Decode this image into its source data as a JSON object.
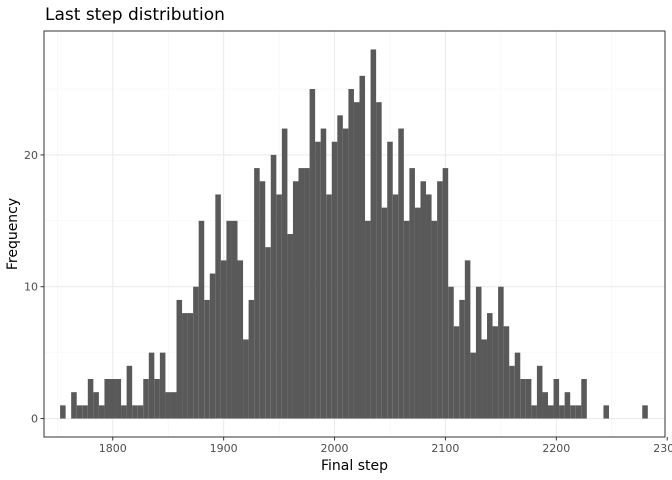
{
  "chart_data": {
    "type": "bar",
    "title": "Last step distribution",
    "xlabel": "Final step",
    "ylabel": "Frequency",
    "xlim": [
      1738,
      2298
    ],
    "ylim": [
      -1.4,
      29.4
    ],
    "x_ticks": [
      1800,
      1900,
      2000,
      2100,
      2200,
      2300
    ],
    "y_ticks": [
      0,
      10,
      20
    ],
    "x_tick_labels": [
      "1800",
      "1900",
      "2000",
      "2100",
      "2200",
      "2300"
    ],
    "y_tick_labels": [
      "0",
      "10",
      "20"
    ],
    "bin_width": 5,
    "grid": true,
    "legend": "none",
    "colors": {
      "bar": "#595959",
      "grid_major": "#ebebeb",
      "grid_minor": "#f5f5f5",
      "panel_border": "#333333"
    },
    "x": [
      1755,
      1765,
      1770,
      1775,
      1780,
      1785,
      1790,
      1795,
      1800,
      1805,
      1810,
      1815,
      1820,
      1825,
      1830,
      1835,
      1840,
      1845,
      1850,
      1855,
      1860,
      1865,
      1870,
      1875,
      1880,
      1885,
      1890,
      1895,
      1900,
      1905,
      1910,
      1915,
      1920,
      1925,
      1930,
      1935,
      1940,
      1945,
      1950,
      1955,
      1960,
      1965,
      1970,
      1975,
      1980,
      1985,
      1990,
      1995,
      2000,
      2005,
      2010,
      2015,
      2020,
      2025,
      2030,
      2035,
      2040,
      2045,
      2050,
      2055,
      2060,
      2065,
      2070,
      2075,
      2080,
      2085,
      2090,
      2095,
      2100,
      2105,
      2110,
      2115,
      2120,
      2125,
      2130,
      2135,
      2140,
      2145,
      2150,
      2155,
      2160,
      2165,
      2170,
      2175,
      2180,
      2185,
      2190,
      2195,
      2200,
      2205,
      2210,
      2215,
      2220,
      2225,
      2245,
      2280
    ],
    "values": [
      1,
      2,
      1,
      1,
      3,
      2,
      1,
      3,
      3,
      3,
      1,
      4,
      1,
      1,
      3,
      5,
      3,
      5,
      2,
      2,
      9,
      8,
      8,
      10,
      15,
      9,
      11,
      17,
      12,
      15,
      15,
      12,
      6,
      9,
      19,
      18,
      13,
      20,
      17,
      22,
      14,
      18,
      19,
      19,
      25,
      21,
      22,
      17,
      21,
      23,
      22,
      25,
      24,
      26,
      15,
      28,
      24,
      16,
      21,
      17,
      22,
      15,
      19,
      16,
      18,
      17,
      15,
      18,
      19,
      10,
      7,
      9,
      12,
      5,
      10,
      6,
      8,
      7,
      10,
      7,
      4,
      5,
      3,
      3,
      1,
      4,
      2,
      1,
      3,
      1,
      2,
      1,
      1,
      3,
      1,
      1
    ]
  }
}
